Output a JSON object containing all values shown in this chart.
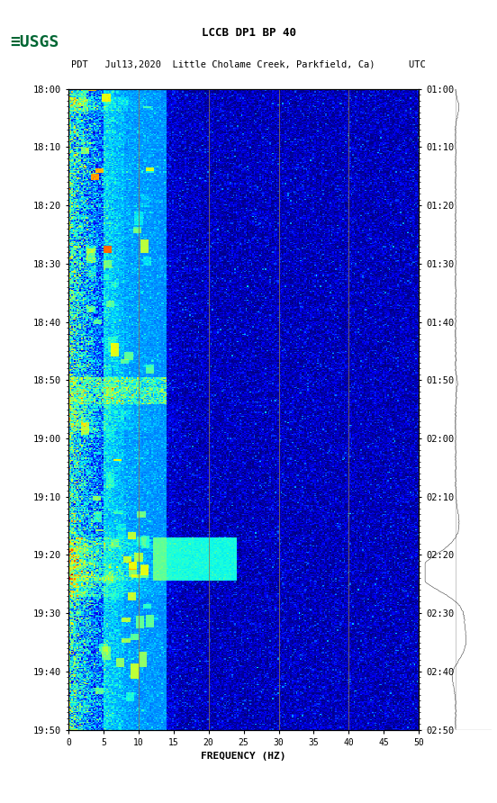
{
  "title_line1": "LCCB DP1 BP 40",
  "title_line2": "PDT   Jul13,2020  Little Cholame Creek, Parkfield, Ca)      UTC",
  "xlabel": "FREQUENCY (HZ)",
  "freq_min": 0,
  "freq_max": 50,
  "freq_ticks": [
    0,
    5,
    10,
    15,
    20,
    25,
    30,
    35,
    40,
    45,
    50
  ],
  "time_start_pdt": "18:00",
  "time_end_pdt": "19:50",
  "time_start_utc": "01:00",
  "time_end_utc": "02:50",
  "pdt_labels": [
    "18:00",
    "18:10",
    "18:20",
    "18:30",
    "18:40",
    "18:50",
    "19:00",
    "19:10",
    "19:20",
    "19:30",
    "19:40",
    "19:50"
  ],
  "utc_labels": [
    "01:00",
    "01:10",
    "01:20",
    "01:30",
    "01:40",
    "01:50",
    "02:00",
    "02:10",
    "02:20",
    "02:30",
    "02:40",
    "02:50"
  ],
  "vertical_lines_freq": [
    10,
    20,
    30,
    40
  ],
  "background_color": "#ffffff",
  "spectrogram_bg": "#00008B",
  "usgs_green": "#006633",
  "fig_width": 5.52,
  "fig_height": 8.92
}
